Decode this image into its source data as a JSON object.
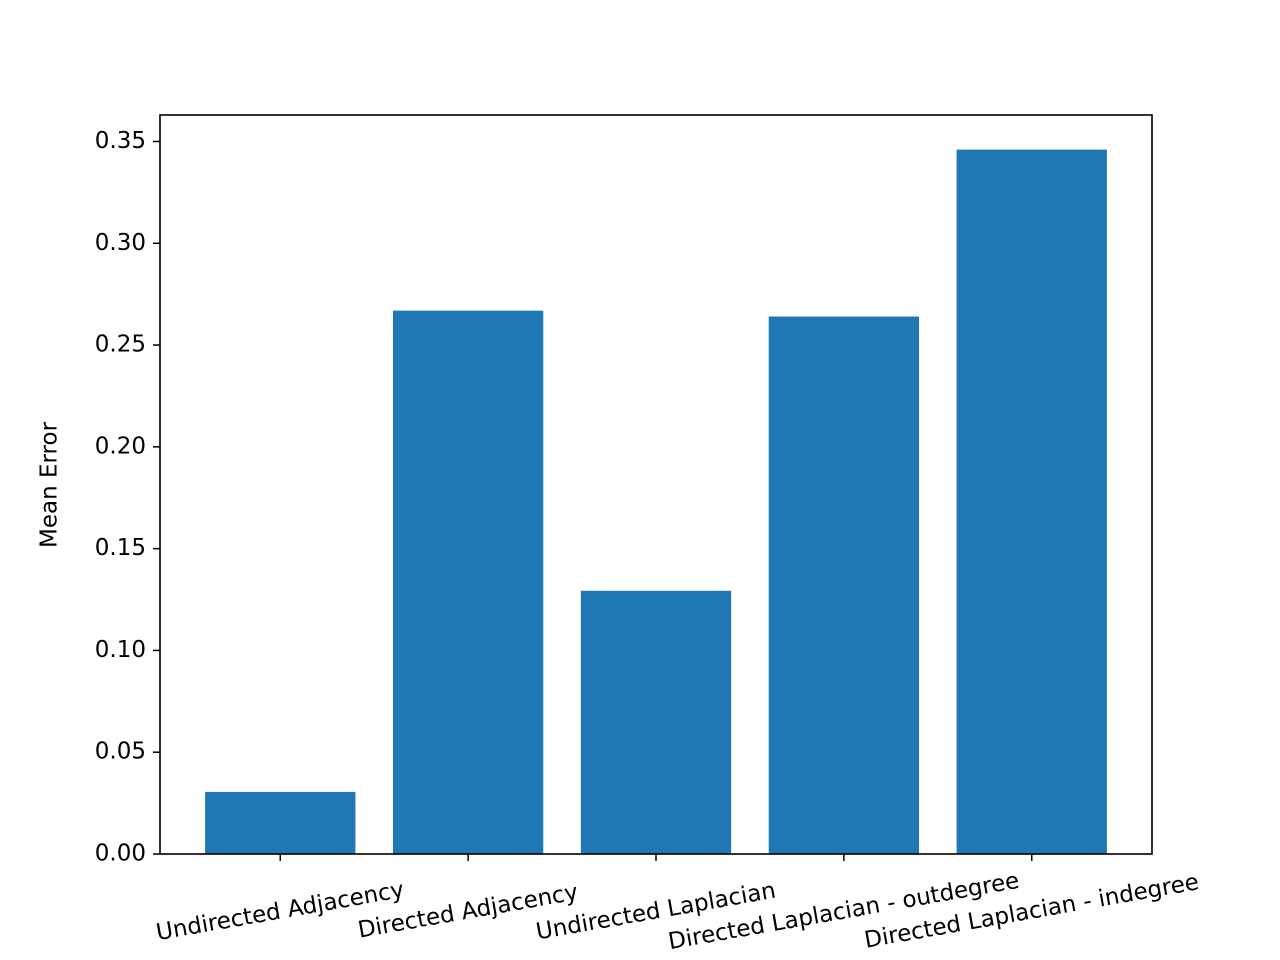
{
  "chart_data": {
    "type": "bar",
    "y_label": "Mean Error",
    "categories": [
      "Undirected Adjacency",
      "Directed Adjacency",
      "Undirected Laplacian",
      "Directed Laplacian - outdegree",
      "Directed Laplacian - indegree"
    ],
    "values": [
      0.0305,
      0.2669,
      0.1293,
      0.264,
      0.346
    ],
    "color": "#1f77b4",
    "ylim": [
      0,
      0.363
    ],
    "yticks": [
      {
        "value": 0,
        "label": "0.00"
      },
      {
        "value": 0.05,
        "label": "0.05"
      },
      {
        "value": 0.1,
        "label": "0.10"
      },
      {
        "value": 0.15,
        "label": "0.15"
      },
      {
        "value": 0.2,
        "label": "0.20"
      },
      {
        "value": 0.25,
        "label": "0.25"
      },
      {
        "value": 0.3,
        "label": "0.30"
      },
      {
        "value": 0.35,
        "label": "0.35"
      }
    ],
    "grid": false
  }
}
